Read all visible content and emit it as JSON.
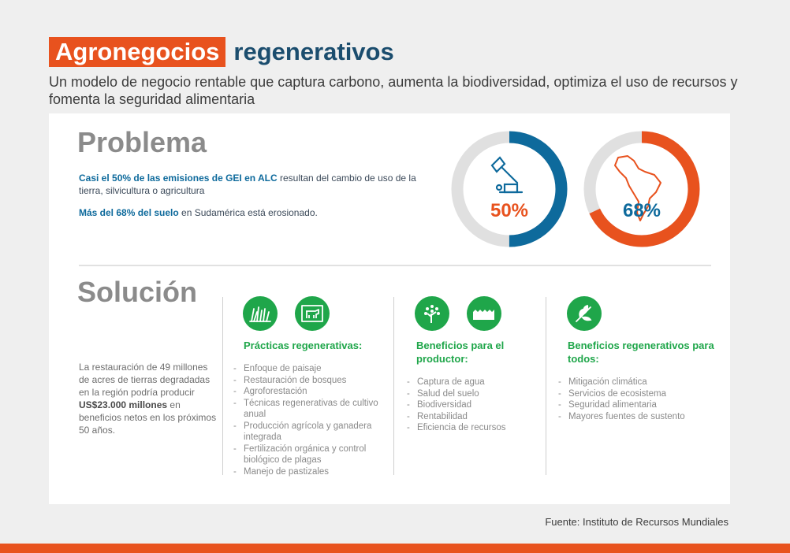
{
  "header": {
    "title_highlight": "Agronegocios",
    "title_rest": "regenerativos",
    "subtitle": "Un modelo de negocio rentable que captura carbono, aumenta la biodiversidad, optimiza el uso de recursos y fomenta la seguridad alimentaria"
  },
  "problem": {
    "heading": "Problema",
    "para1_bold": "Casi el 50% de las emisiones de GEI en ALC",
    "para1_rest": " resultan del cambio de uso de la tierra, silvicultura o agricultura",
    "para2_bold": "Más del 68% del suelo",
    "para2_rest": " en Sudamérica está erosionado.",
    "stat1": {
      "label": "50%",
      "value": 50,
      "color": "#0e6a9c",
      "icon": "axe-stump-icon"
    },
    "stat2": {
      "label": "68%",
      "value": 68,
      "color": "#e8521e",
      "icon": "latin-america-map-icon"
    }
  },
  "solution": {
    "heading": "Solución",
    "text_pre": "La restauración de 49 millones de acres de tierras degradadas en la región podría producir ",
    "text_bold": "US$23.000 millones",
    "text_post": " en beneficios netos en los próximos 50 años.",
    "columns": [
      {
        "title": "Prácticas regenerativas:",
        "icons": [
          "grass-icon",
          "cow-icon"
        ],
        "items": [
          "Enfoque de paisaje",
          "Restauración de bosques",
          "Agroforestación",
          "Técnicas regenerativas de cultivo anual",
          "Producción agrícola y ganadera integrada",
          "Fertilización orgánica y control biológico de plagas",
          "Manejo de pastizales"
        ]
      },
      {
        "title": "Beneficios para el productor:",
        "icons": [
          "tree-icon",
          "soil-icon"
        ],
        "items": [
          "Captura de agua",
          "Salud del suelo",
          "Biodiversidad",
          "Rentabilidad",
          "Eficiencia de recursos"
        ]
      },
      {
        "title": "Beneficios regenerativos para todos:",
        "icons": [
          "leaves-icon"
        ],
        "items": [
          "Mitigación climática",
          "Servicios de ecosistema",
          "Seguridad alimentaria",
          "Mayores fuentes de sustento"
        ]
      }
    ]
  },
  "source": "Fuente: Instituto de Recursos Mundiales",
  "colors": {
    "accent": "#e8521e",
    "navy": "#1b4d6e",
    "blue": "#0e6a9c",
    "green": "#1fa64a"
  }
}
